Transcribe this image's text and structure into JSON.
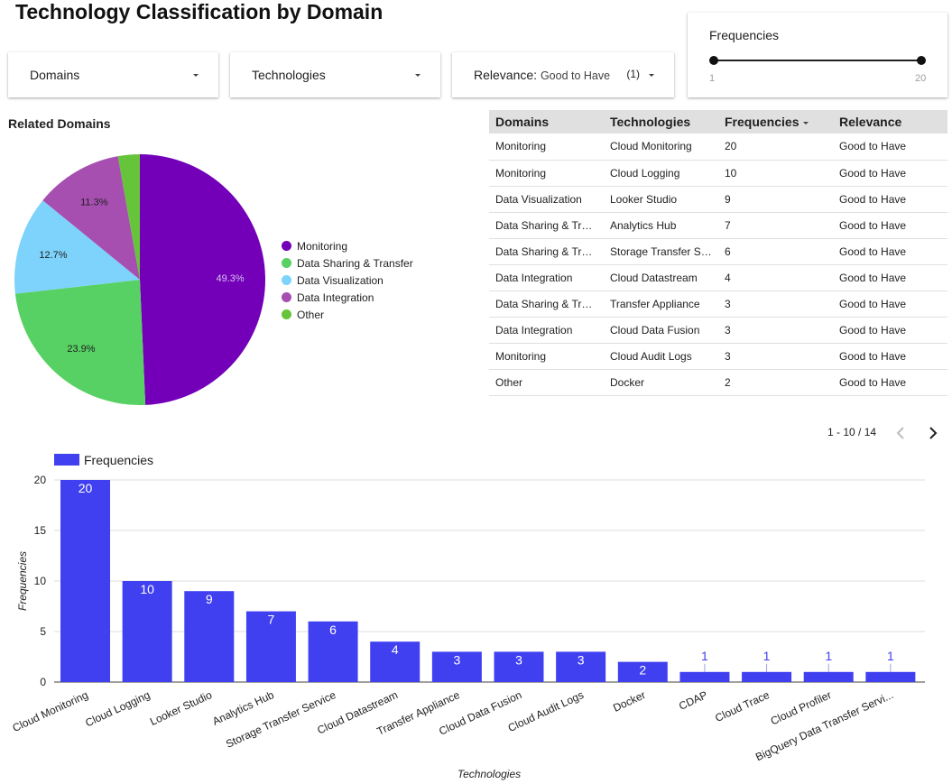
{
  "page": {
    "title": "Technology Classification by Domain"
  },
  "controls": {
    "domains": {
      "label": "Domains"
    },
    "technologies": {
      "label": "Technologies"
    },
    "relevance": {
      "label": "Relevance:",
      "selected": "Good to Have",
      "count": "(1)"
    },
    "frequencies": {
      "label": "Frequencies",
      "min": "1",
      "max": "20"
    }
  },
  "table": {
    "headers": [
      "Domains",
      "Technologies",
      "Frequencies",
      "Relevance"
    ],
    "rows": [
      [
        "Monitoring",
        "Cloud Monitoring",
        "20",
        "Good to Have"
      ],
      [
        "Monitoring",
        "Cloud Logging",
        "10",
        "Good to Have"
      ],
      [
        "Data Visualization",
        "Looker Studio",
        "9",
        "Good to Have"
      ],
      [
        "Data Sharing & Transfer",
        "Analytics Hub",
        "7",
        "Good to Have"
      ],
      [
        "Data Sharing & Transfer",
        "Storage Transfer Service",
        "6",
        "Good to Have"
      ],
      [
        "Data Integration",
        "Cloud Datastream",
        "4",
        "Good to Have"
      ],
      [
        "Data Sharing & Transfer",
        "Transfer Appliance",
        "3",
        "Good to Have"
      ],
      [
        "Data Integration",
        "Cloud Data Fusion",
        "3",
        "Good to Have"
      ],
      [
        "Monitoring",
        "Cloud Audit Logs",
        "3",
        "Good to Have"
      ],
      [
        "Other",
        "Docker",
        "2",
        "Good to Have"
      ]
    ],
    "pagination": "1 - 10 / 14"
  },
  "colors": {
    "bar": "#4040f0",
    "monitoring": "#7300b8",
    "sharing": "#57d163",
    "visualization": "#7dd3fc",
    "integration": "#a64fb0",
    "other": "#66c43a"
  },
  "chart_data": [
    {
      "type": "pie",
      "title": "Related Domains",
      "labels": [
        "Monitoring",
        "Data Sharing & Transfer",
        "Data Visualization",
        "Data Integration",
        "Other"
      ],
      "values": [
        49.3,
        23.9,
        12.7,
        11.3,
        2.8
      ],
      "value_labels": [
        "49.3%",
        "23.9%",
        "12.7%",
        "11.3%",
        ""
      ],
      "colors": [
        "#7300b8",
        "#57d163",
        "#7dd3fc",
        "#a64fb0",
        "#66c43a"
      ],
      "legend": "right"
    },
    {
      "type": "bar",
      "legend_label": "Frequencies",
      "categories": [
        "Cloud Monitoring",
        "Cloud Logging",
        "Looker Studio",
        "Analytics Hub",
        "Storage Transfer Service",
        "Cloud Datastream",
        "Transfer Appliance",
        "Cloud Data Fusion",
        "Cloud Audit Logs",
        "Docker",
        "CDAP",
        "Cloud Trace",
        "Cloud Profiler",
        "BigQuery Data Transfer Servi..."
      ],
      "values": [
        20,
        10,
        9,
        7,
        6,
        4,
        3,
        3,
        3,
        2,
        1,
        1,
        1,
        1
      ],
      "xlabel": "Technologies",
      "ylabel": "Frequencies",
      "ylim": [
        0,
        20
      ],
      "yticks": [
        0,
        5,
        10,
        15,
        20
      ],
      "grid": true,
      "legend": "top-left"
    }
  ]
}
